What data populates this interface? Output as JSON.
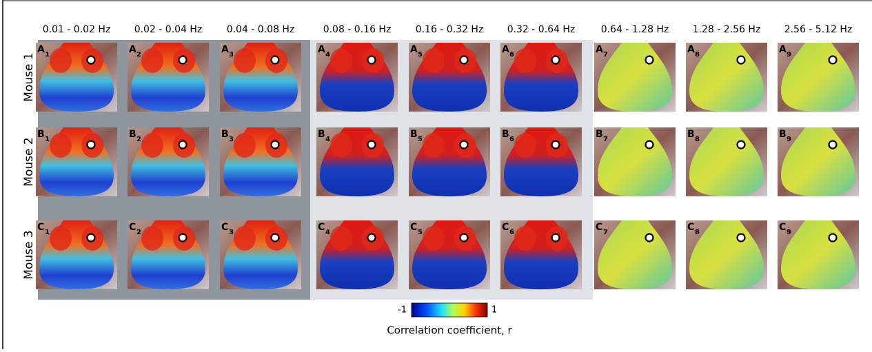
{
  "bands": [
    "0.01 - 0.02 Hz",
    "0.02 - 0.04 Hz",
    "0.04 - 0.08 Hz",
    "0.08 - 0.16 Hz",
    "0.16 - 0.32 Hz",
    "0.32 - 0.64 Hz",
    "0.64 - 1.28 Hz",
    "1.28 - 2.56 Hz",
    "2.56 - 5.12 Hz"
  ],
  "rows": [
    {
      "label": "Mouse 1",
      "panels": [
        {
          "letter": "A",
          "sub": "1"
        },
        {
          "letter": "A",
          "sub": "2"
        },
        {
          "letter": "A",
          "sub": "3"
        },
        {
          "letter": "A",
          "sub": "4"
        },
        {
          "letter": "A",
          "sub": "5"
        },
        {
          "letter": "A",
          "sub": "6"
        },
        {
          "letter": "A",
          "sub": "7"
        },
        {
          "letter": "A",
          "sub": "8"
        },
        {
          "letter": "A",
          "sub": "9"
        }
      ]
    },
    {
      "label": "Mouse 2",
      "panels": [
        {
          "letter": "B",
          "sub": "1"
        },
        {
          "letter": "B",
          "sub": "2"
        },
        {
          "letter": "B",
          "sub": "3"
        },
        {
          "letter": "B",
          "sub": "4"
        },
        {
          "letter": "B",
          "sub": "5"
        },
        {
          "letter": "B",
          "sub": "6"
        },
        {
          "letter": "B",
          "sub": "7"
        },
        {
          "letter": "B",
          "sub": "8"
        },
        {
          "letter": "B",
          "sub": "9"
        }
      ]
    },
    {
      "label": "Mouse 3",
      "panels": [
        {
          "letter": "C",
          "sub": "1"
        },
        {
          "letter": "C",
          "sub": "2"
        },
        {
          "letter": "C",
          "sub": "3"
        },
        {
          "letter": "C",
          "sub": "4"
        },
        {
          "letter": "C",
          "sub": "5"
        },
        {
          "letter": "C",
          "sub": "6"
        },
        {
          "letter": "C",
          "sub": "7"
        },
        {
          "letter": "C",
          "sub": "8"
        },
        {
          "letter": "C",
          "sub": "9"
        }
      ]
    }
  ],
  "colorbar": {
    "min_label": "-1",
    "max_label": "1",
    "title": "Correlation coefficient, r"
  }
}
